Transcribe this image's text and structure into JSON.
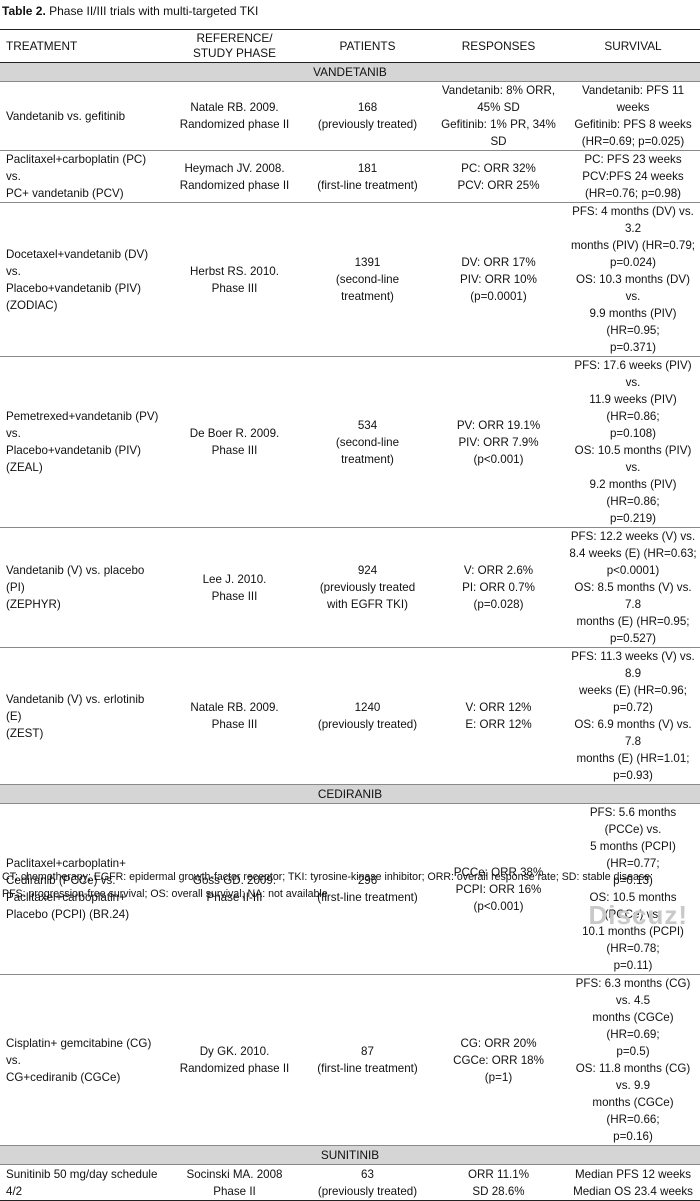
{
  "caption": {
    "label": "Table 2.",
    "text": " Phase II/III trials with multi-targeted TKI"
  },
  "headers": {
    "treatment": "TREATMENT",
    "reference": "REFERENCE/\nSTUDY PHASE",
    "patients": "PATIENTS",
    "responses": "RESPONSES",
    "survival": "SURVIVAL"
  },
  "groups": {
    "vandetanib": "VANDETANIB",
    "cediranib": "CEDIRANIB",
    "sunitinib": "SUNITINIB"
  },
  "rows": [
    {
      "treatment": "Vandetanib vs. gefitinib",
      "reference": "Natale RB. 2009.\nRandomized phase II",
      "patients": "168\n(previously treated)",
      "responses": "Vandetanib: 8% ORR,\n45% SD\nGefitinib: 1% PR, 34%\nSD",
      "survival": "Vandetanib: PFS 11 weeks\nGefitinib: PFS 8 weeks\n(HR=0.69; p=0.025)"
    },
    {
      "treatment": "Paclitaxel+carboplatin (PC)\nvs.\nPC+ vandetanib (PCV)",
      "reference": "Heymach JV. 2008.\nRandomized phase II",
      "patients": "181\n(first-line treatment)",
      "responses": "PC: ORR 32%\nPCV: ORR 25%",
      "survival": "PC: PFS 23 weeks\nPCV:PFS 24 weeks\n(HR=0.76; p=0.98)"
    },
    {
      "treatment": "Docetaxel+vandetanib (DV)\nvs.\nPlacebo+vandetanib (PIV)\n(ZODIAC)",
      "reference": "Herbst RS. 2010.\nPhase III",
      "patients": "1391\n(second-line\ntreatment)",
      "responses": "DV: ORR 17%\nPIV: ORR 10%\n(p=0.0001)",
      "survival": "PFS: 4 months (DV) vs. 3.2\nmonths (PIV) (HR=0.79;\np=0.024)\nOS: 10.3 months (DV) vs.\n9.9 months (PIV) (HR=0.95;\np=0.371)"
    },
    {
      "treatment": "Pemetrexed+vandetanib (PV)\nvs.\nPlacebo+vandetanib (PIV)\n(ZEAL)",
      "reference": "De Boer R. 2009.\nPhase III",
      "patients": "534\n(second-line\ntreatment)",
      "responses": "PV: ORR 19.1%\nPIV: ORR 7.9%\n(p<0.001)",
      "survival": "PFS: 17.6 weeks (PIV) vs.\n11.9 weeks (PIV) (HR=0.86;\np=0.108)\nOS: 10.5 months (PIV) vs.\n9.2 months (PIV) (HR=0.86;\np=0.219)"
    },
    {
      "treatment": "Vandetanib (V) vs. placebo (PI)\n(ZEPHYR)",
      "reference": "Lee J. 2010.\nPhase III",
      "patients": "924\n(previously treated\nwith EGFR TKI)",
      "responses": "V: ORR 2.6%\nPI: ORR 0.7%\n(p=0.028)",
      "survival": "PFS: 12.2 weeks (V) vs.\n8.4 weeks (E) (HR=0.63;\np<0.0001)\nOS: 8.5 months (V) vs. 7.8\nmonths (E) (HR=0.95;\np=0.527)"
    },
    {
      "treatment": "Vandetanib (V) vs. erlotinib (E)\n(ZEST)",
      "reference": "Natale RB. 2009.\nPhase III",
      "patients": "1240\n(previously treated)",
      "responses": "V: ORR 12%\nE: ORR 12%",
      "survival": "PFS: 11.3 weeks (V) vs. 8.9\nweeks (E) (HR=0.96; p=0.72)\nOS: 6.9 months (V) vs. 7.8\nmonths (E) (HR=1.01; p=0.93)"
    },
    {
      "treatment": "Paclitaxel+carboplatin+\nCediranib (PCCe) vs.\nPaclitaxel+carboplatin+\nPlacebo (PCPI) (BR.24)",
      "reference": "Goss GD. 2009.\nPhase II-III",
      "patients": "296\n(first-line treatment)",
      "responses": "PCCe: ORR 38%\nPCPI: ORR 16%\n(p<0.001)",
      "survival": "PFS: 5.6 months (PCCe) vs.\n5 months (PCPI) (HR=0.77;\np=0.13)\nOS: 10.5 months (PCCe) vs.\n10.1 months (PCPI) (HR=0.78;\np=0.11)"
    },
    {
      "treatment": "Cisplatin+ gemcitabine (CG)\nvs.\nCG+cediranib (CGCe)",
      "reference": "Dy GK. 2010.\nRandomized phase II",
      "patients": "87\n(first-line treatment)",
      "responses": "CG: ORR 20%\nCGCe: ORR 18%\n(p=1)",
      "survival": "PFS: 6.3 months (CG) vs. 4.5\nmonths (CGCe) (HR=0.69;\np=0.5)\nOS: 11.8 months (CG) vs. 9.9\nmonths (CGCe) (HR=0.66;\np=0.16)"
    },
    {
      "treatment": "Sunitinib 50 mg/day schedule 4/2",
      "reference": "Socinski MA. 2008\nPhase II",
      "patients": "63\n(previously treated)",
      "responses": "ORR 11.1%\nSD 28.6%",
      "survival": "Median PFS 12 weeks\nMedian OS 23.4 weeks"
    }
  ],
  "footnote": "CT: chemotherapy; EGFR: epidermal growth-factor receptor; TKI: tyrosine-kinase inhibitor; ORR: overall response rate; SD: stable disease;\nPFS: progression-free survival; OS: overall survival; NA: not available",
  "watermark": "Discuz!"
}
